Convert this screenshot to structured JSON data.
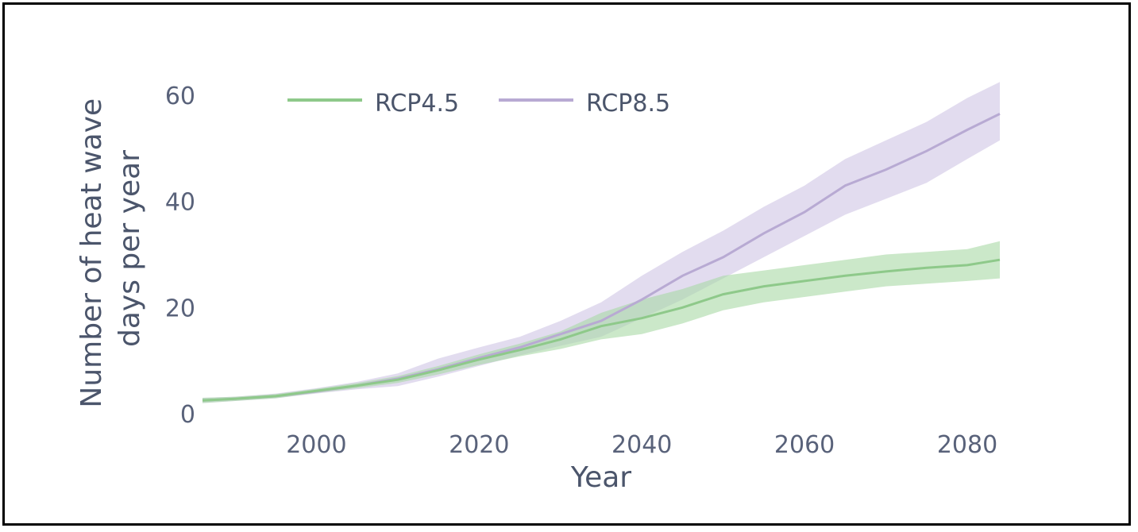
{
  "chart_data": {
    "type": "line",
    "xlabel": "Year",
    "ylabel_lines": [
      "Number of heat wave",
      "days per year"
    ],
    "xlim": [
      1986,
      2084
    ],
    "ylim": [
      0,
      63
    ],
    "x_ticks": [
      2000,
      2020,
      2040,
      2060,
      2080
    ],
    "y_ticks": [
      0,
      20,
      40,
      60
    ],
    "grid": false,
    "legend_position": "top-left",
    "series": [
      {
        "name": "RCP8.5",
        "color": "#b8aad3",
        "band_color": "#cfc5e5",
        "x": [
          1986,
          1990,
          1995,
          2000,
          2005,
          2010,
          2015,
          2020,
          2025,
          2030,
          2035,
          2040,
          2045,
          2050,
          2055,
          2060,
          2065,
          2070,
          2075,
          2080,
          2084
        ],
        "mean": [
          2.5,
          2.8,
          3.3,
          4.2,
          5.3,
          6.6,
          8.4,
          10.5,
          12.5,
          15.0,
          17.5,
          21.5,
          26.0,
          29.5,
          34.0,
          38.0,
          43.0,
          46.0,
          49.5,
          53.5,
          56.5
        ],
        "lower": [
          2.0,
          2.4,
          2.9,
          3.8,
          4.6,
          5.2,
          7.0,
          9.0,
          11.0,
          12.8,
          14.5,
          18.0,
          21.5,
          25.5,
          29.5,
          33.5,
          37.5,
          40.5,
          43.5,
          48.0,
          51.5
        ],
        "upper": [
          3.0,
          3.2,
          3.8,
          4.8,
          6.0,
          7.6,
          10.4,
          12.5,
          14.5,
          17.5,
          21.0,
          26.0,
          30.5,
          34.5,
          39.0,
          43.0,
          48.0,
          51.5,
          55.0,
          59.5,
          62.5
        ]
      },
      {
        "name": "RCP4.5",
        "color": "#8ec98a",
        "band_color": "#a9d8a5",
        "x": [
          1986,
          1990,
          1995,
          2000,
          2005,
          2010,
          2015,
          2020,
          2025,
          2030,
          2035,
          2040,
          2045,
          2050,
          2055,
          2060,
          2065,
          2070,
          2075,
          2080,
          2084
        ],
        "mean": [
          2.5,
          2.8,
          3.3,
          4.3,
          5.3,
          6.4,
          8.2,
          10.2,
          12.0,
          14.0,
          16.5,
          18.0,
          20.0,
          22.5,
          24.0,
          25.0,
          26.0,
          26.8,
          27.5,
          28.0,
          29.0
        ],
        "lower": [
          2.0,
          2.4,
          2.9,
          3.9,
          4.8,
          5.8,
          7.4,
          9.2,
          10.8,
          12.2,
          14.0,
          15.0,
          17.0,
          19.5,
          21.0,
          22.0,
          23.0,
          24.0,
          24.5,
          25.0,
          25.5
        ],
        "upper": [
          3.0,
          3.2,
          3.7,
          4.7,
          5.8,
          7.1,
          9.0,
          11.2,
          13.2,
          15.5,
          19.0,
          21.5,
          23.5,
          26.0,
          27.0,
          28.0,
          29.0,
          30.0,
          30.5,
          31.0,
          32.5
        ]
      }
    ]
  }
}
